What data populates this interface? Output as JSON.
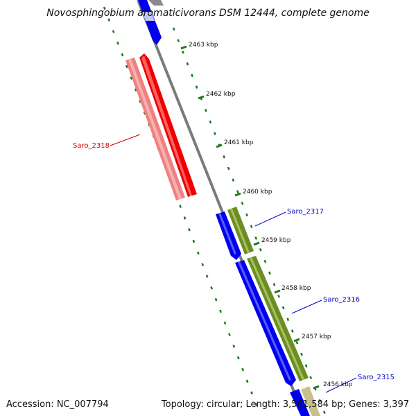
{
  "title": "Novosphingobium aromaticivorans DSM 12444, complete genome",
  "accession": "Accession: NC_007794",
  "topology": "Topology: circular; Length: 3,561,584 bp; Genes: 3,397",
  "kbp_labels": [
    "2463 kbp",
    "2462 kbp",
    "2461 kbp",
    "2460 kbp",
    "2459 kbp",
    "2458 kbp",
    "2457 kbp",
    "2456 kbp"
  ],
  "gene_labels": [
    {
      "name": "Saro_2318",
      "color": "#cc0000"
    },
    {
      "name": "Saro_2317",
      "color": "#0000cc"
    },
    {
      "name": "Saro_2316",
      "color": "#0000cc"
    },
    {
      "name": "Saro_2315",
      "color": "#0000cc"
    }
  ],
  "colors": {
    "backbone": "#808080",
    "ticks": "#1a7a1a",
    "forward_gene": "#0000ee",
    "reverse_gene": "#ee0000",
    "reverse_gene_light": "#f08080",
    "cds": "#6b8e23",
    "cds_light": "#c8c08a"
  }
}
